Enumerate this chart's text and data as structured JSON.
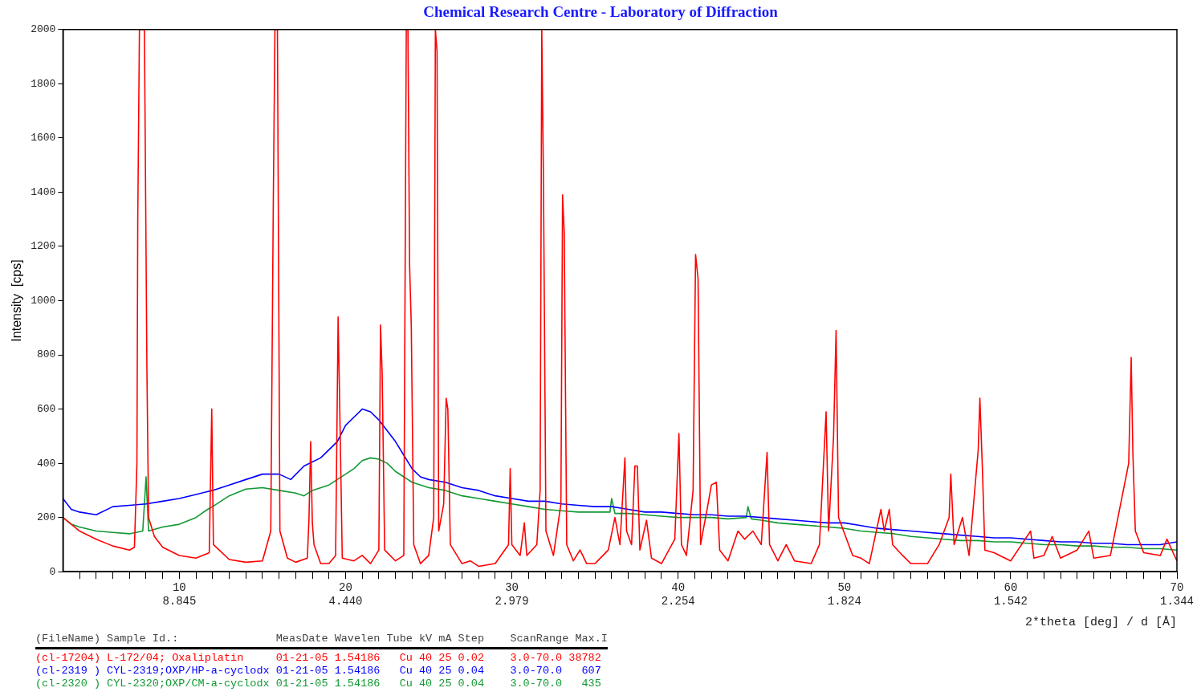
{
  "chart_data": {
    "type": "line",
    "title": "Chemical Research Centre  -  Laboratory of Diffraction",
    "xlabel": "2*theta [deg] / d [Å]",
    "ylabel": "Intensity  [cps]",
    "annotations": [
      "(FileName) Sample Id.:               MeasDate Wavelen Tube kV mA Step    ScanRange Max.I",
      "8.845",
      "4.440",
      "2.979",
      "2.254",
      "1.824",
      "1.542",
      "1.344"
    ],
    "xlim": [
      3,
      70
    ],
    "ylim": [
      0,
      2000
    ],
    "xticks": [
      {
        "value": 4,
        "label": null
      },
      {
        "value": 5,
        "label": null
      },
      {
        "value": 6,
        "label": null
      },
      {
        "value": 7,
        "label": null
      },
      {
        "value": 8,
        "label": null
      },
      {
        "value": 9,
        "label": null
      },
      10,
      {
        "value": 11,
        "label": null
      },
      {
        "value": 12,
        "label": null
      },
      {
        "value": 13,
        "label": null
      },
      {
        "value": 14,
        "label": null
      },
      {
        "value": 15,
        "label": null
      },
      {
        "value": 16,
        "label": null
      },
      {
        "value": 17,
        "label": null
      },
      {
        "value": 18,
        "label": null
      },
      {
        "value": 19,
        "label": null
      },
      20,
      {
        "value": 21,
        "label": null
      },
      {
        "value": 22,
        "label": null
      },
      {
        "value": 23,
        "label": null
      },
      {
        "value": 24,
        "label": null
      },
      {
        "value": 25,
        "label": null
      },
      {
        "value": 26,
        "label": null
      },
      {
        "value": 27,
        "label": null
      },
      {
        "value": 28,
        "label": null
      },
      {
        "value": 29,
        "label": null
      },
      30,
      {
        "value": 31,
        "label": null
      },
      {
        "value": 32,
        "label": null
      },
      {
        "value": 33,
        "label": null
      },
      {
        "value": 34,
        "label": null
      },
      {
        "value": 35,
        "label": null
      },
      {
        "value": 36,
        "label": null
      },
      {
        "value": 37,
        "label": null
      },
      {
        "value": 38,
        "label": null
      },
      {
        "value": 39,
        "label": null
      },
      40,
      {
        "value": 41,
        "label": null
      },
      {
        "value": 42,
        "label": null
      },
      {
        "value": 43,
        "label": null
      },
      {
        "value": 44,
        "label": null
      },
      {
        "value": 45,
        "label": null
      },
      {
        "value": 46,
        "label": null
      },
      {
        "value": 47,
        "label": null
      },
      {
        "value": 48,
        "label": null
      },
      {
        "value": 49,
        "label": null
      },
      50,
      {
        "value": 51,
        "label": null
      },
      {
        "value": 52,
        "label": null
      },
      {
        "value": 53,
        "label": null
      },
      {
        "value": 54,
        "label": null
      },
      {
        "value": 55,
        "label": null
      },
      {
        "value": 56,
        "label": null
      },
      {
        "value": 57,
        "label": null
      },
      {
        "value": 58,
        "label": null
      },
      {
        "value": 59,
        "label": null
      },
      60,
      {
        "value": 61,
        "label": null
      },
      {
        "value": 62,
        "label": null
      },
      {
        "value": 63,
        "label": null
      },
      {
        "value": 64,
        "label": null
      },
      {
        "value": 65,
        "label": null
      },
      {
        "value": 66,
        "label": null
      },
      {
        "value": 67,
        "label": null
      },
      {
        "value": 68,
        "label": null
      },
      {
        "value": 69,
        "label": null
      },
      70
    ],
    "yticks": [
      0,
      200,
      400,
      600,
      800,
      1000,
      1200,
      1400,
      1600,
      1800,
      2000
    ],
    "grid": false,
    "legend": "bottom",
    "marker": "none",
    "line_style": "solid",
    "series": [
      {
        "name": "(cl-17204) L-172/04; Oxaliplatin     01-21-05 1.54186   Cu 40 25 0.02    3.0-70.0 38782",
        "color": "#ff0000",
        "x": [
          3,
          4,
          5,
          6,
          7,
          7.3,
          7.45,
          7.5,
          7.6,
          7.75,
          7.9,
          8.05,
          8.15,
          8.5,
          9,
          10,
          11,
          11.8,
          11.95,
          12.05,
          13,
          14,
          15,
          15.5,
          15.65,
          15.75,
          15.9,
          16.05,
          16.5,
          17,
          17.7,
          17.8,
          17.9,
          18,
          18.1,
          18.5,
          19,
          19.4,
          19.55,
          19.65,
          19.8,
          20.5,
          21,
          21.5,
          22,
          22.1,
          22.2,
          22.35,
          23,
          23.5,
          23.65,
          23.75,
          23.85,
          23.95,
          24.1,
          24.5,
          25,
          25.3,
          25.4,
          25.5,
          25.6,
          25.9,
          26.05,
          26.15,
          26.3,
          27,
          27.5,
          28,
          29,
          29.8,
          29.9,
          30,
          30.5,
          30.75,
          30.9,
          31.5,
          31.7,
          31.8,
          31.9,
          32.05,
          32.5,
          32.95,
          33.05,
          33.15,
          33.3,
          33.7,
          34.1,
          34.5,
          35,
          35.8,
          36.2,
          36.5,
          36.8,
          36.9,
          37.2,
          37.4,
          37.55,
          37.7,
          38.1,
          38.4,
          39,
          39.8,
          40.05,
          40.2,
          40.5,
          40.9,
          41.05,
          41.2,
          41.35,
          41.8,
          42,
          42.3,
          42.5,
          43,
          43.6,
          44,
          44.5,
          45,
          45.35,
          45.5,
          46,
          46.5,
          47,
          48,
          48.5,
          48.9,
          49.05,
          49.35,
          49.5,
          49.65,
          50.5,
          51,
          51.5,
          52.2,
          52.4,
          52.7,
          52.9,
          53.5,
          54,
          55,
          55.7,
          56.3,
          56.4,
          56.6,
          57.1,
          57.5,
          58.05,
          58.15,
          58.3,
          58.45,
          59,
          60,
          61.2,
          61.4,
          62,
          62.5,
          63,
          64,
          64.7,
          65,
          66,
          67.1,
          67.25,
          67.35,
          67.5,
          68,
          69,
          69.4,
          70
        ],
        "values": [
          200,
          150,
          120,
          95,
          80,
          90,
          400,
          1300,
          2000,
          2000,
          2000,
          750,
          200,
          130,
          90,
          60,
          50,
          70,
          600,
          100,
          45,
          35,
          40,
          150,
          1350,
          2000,
          2000,
          150,
          50,
          35,
          50,
          200,
          480,
          180,
          100,
          30,
          30,
          60,
          940,
          600,
          50,
          40,
          60,
          30,
          80,
          910,
          730,
          80,
          40,
          60,
          2000,
          2000,
          1130,
          910,
          100,
          30,
          60,
          200,
          2000,
          1920,
          150,
          250,
          640,
          600,
          100,
          30,
          40,
          20,
          30,
          100,
          380,
          100,
          60,
          180,
          60,
          100,
          300,
          2000,
          1450,
          150,
          60,
          250,
          1390,
          1250,
          100,
          40,
          80,
          30,
          30,
          80,
          200,
          100,
          420,
          150,
          100,
          390,
          390,
          80,
          190,
          50,
          30,
          120,
          510,
          100,
          60,
          300,
          1170,
          1080,
          100,
          250,
          320,
          330,
          80,
          40,
          150,
          120,
          150,
          100,
          440,
          100,
          40,
          100,
          40,
          30,
          100,
          590,
          150,
          500,
          890,
          200,
          60,
          50,
          30,
          230,
          150,
          230,
          100,
          60,
          30,
          30,
          100,
          200,
          360,
          100,
          200,
          60,
          450,
          640,
          380,
          80,
          70,
          40,
          150,
          50,
          60,
          130,
          50,
          80,
          150,
          50,
          60,
          400,
          790,
          440,
          150,
          70,
          60,
          120,
          40
        ]
      },
      {
        "name": "(cl-2319 ) CYL-2319;OXP/HP-a-cyclodx 01-21-05 1.54186   Cu 40 25 0.04    3.0-70.0   607",
        "color": "#0000ff",
        "x": [
          3,
          3.5,
          4,
          5,
          6,
          7,
          8,
          9,
          10,
          11,
          12,
          13,
          14,
          15,
          16,
          16.7,
          17.5,
          18.5,
          19.5,
          20,
          20.5,
          21,
          21.5,
          22,
          22.5,
          23,
          23.5,
          24,
          24.5,
          25,
          26,
          27,
          28,
          29,
          30,
          31,
          32,
          33,
          34,
          35,
          36,
          37,
          38,
          39,
          40,
          41,
          42,
          43,
          44,
          45,
          46,
          47,
          48,
          49,
          50,
          51,
          52,
          53,
          54,
          55,
          56,
          57,
          58,
          59,
          60,
          61,
          62,
          63,
          64,
          65,
          66,
          67,
          68,
          69,
          70
        ],
        "values": [
          270,
          230,
          220,
          210,
          240,
          245,
          250,
          260,
          270,
          285,
          300,
          320,
          340,
          360,
          360,
          340,
          390,
          420,
          480,
          540,
          570,
          600,
          590,
          560,
          520,
          480,
          430,
          380,
          350,
          340,
          330,
          310,
          300,
          280,
          270,
          260,
          260,
          250,
          245,
          240,
          240,
          230,
          220,
          220,
          215,
          210,
          210,
          205,
          205,
          200,
          195,
          190,
          185,
          180,
          180,
          170,
          160,
          155,
          150,
          145,
          140,
          135,
          130,
          125,
          125,
          120,
          115,
          110,
          110,
          105,
          105,
          100,
          100,
          100,
          110
        ]
      },
      {
        "name": "(cl-2320 ) CYL-2320;OXP/CM-a-cyclodx 01-21-05 1.54186   Cu 40 25 0.04    3.0-70.0   435",
        "color": "#119933",
        "x": [
          3,
          3.5,
          4,
          5,
          6,
          7,
          7.8,
          8,
          8.15,
          9,
          10,
          11,
          11.7,
          12,
          13,
          14,
          15,
          16,
          17,
          17.5,
          18,
          19,
          20,
          20.5,
          21,
          21.5,
          22,
          22.5,
          23,
          23.5,
          24,
          25,
          26,
          27,
          28,
          29,
          30,
          31,
          32,
          33,
          34,
          35,
          35.9,
          36,
          36.2,
          37,
          38,
          39,
          40,
          41,
          42,
          43,
          44.1,
          44.2,
          44.4,
          45,
          46,
          47,
          48,
          49,
          50,
          51,
          52,
          53,
          54,
          55,
          56,
          57,
          58,
          59,
          60,
          61,
          62,
          63,
          64,
          65,
          66,
          67,
          68,
          69,
          70
        ],
        "values": [
          200,
          175,
          165,
          150,
          145,
          140,
          150,
          350,
          150,
          165,
          175,
          200,
          230,
          240,
          280,
          305,
          310,
          300,
          290,
          280,
          300,
          320,
          360,
          380,
          410,
          420,
          415,
          400,
          370,
          350,
          330,
          310,
          300,
          280,
          270,
          260,
          250,
          240,
          230,
          225,
          220,
          220,
          220,
          270,
          215,
          215,
          210,
          205,
          200,
          200,
          200,
          195,
          200,
          240,
          195,
          190,
          180,
          175,
          170,
          165,
          160,
          150,
          145,
          140,
          130,
          125,
          120,
          115,
          115,
          110,
          110,
          105,
          100,
          100,
          95,
          95,
          90,
          90,
          85,
          85,
          80
        ]
      }
    ]
  }
}
